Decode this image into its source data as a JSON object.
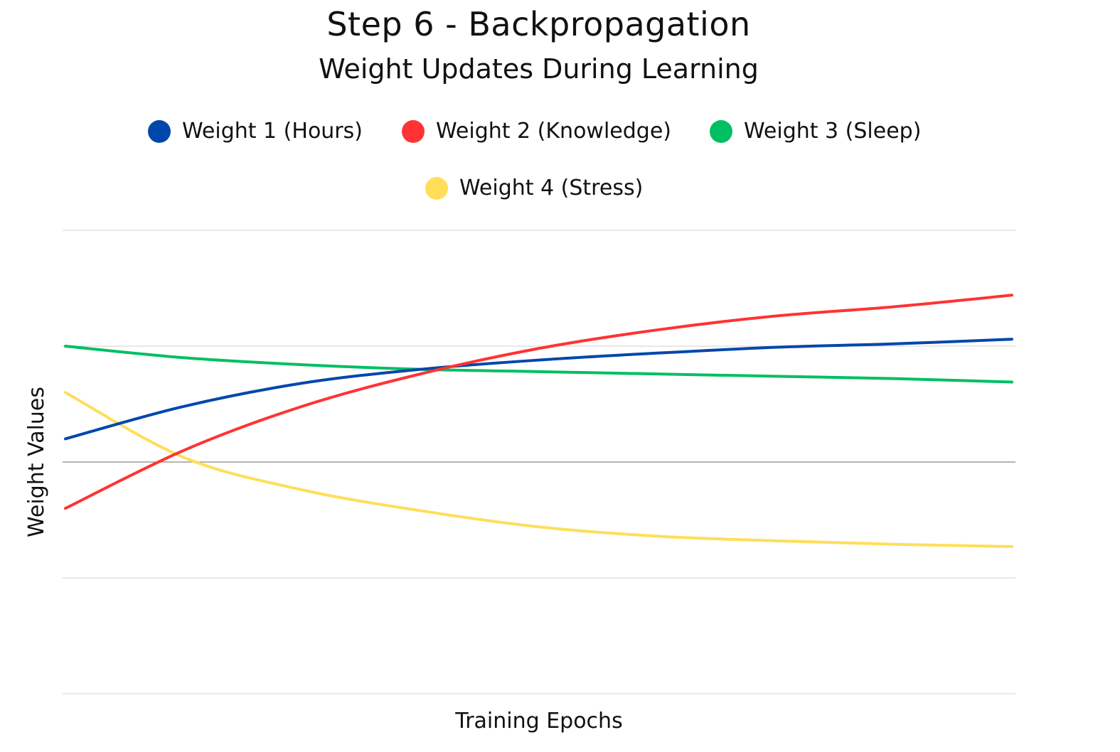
{
  "title": "Step 6 - Backpropagation",
  "subtitle": "Weight Updates During Learning",
  "colors": {
    "weight1": "#0047ab",
    "weight2": "#ff3333",
    "weight3": "#00bf63",
    "weight4": "#ffde59",
    "grid": "#d9d9d9",
    "zero_line": "#888888"
  },
  "legend": [
    {
      "label": "Weight 1 (Hours)",
      "color": "#0047ab"
    },
    {
      "label": "Weight 2 (Knowledge)",
      "color": "#ff3333"
    },
    {
      "label": "Weight 3 (Sleep)",
      "color": "#00bf63"
    },
    {
      "label": "Weight 4 (Stress)",
      "color": "#ffde59"
    }
  ],
  "chart_data": {
    "type": "line",
    "title": "Step 6 - Backpropagation",
    "subtitle": "Weight Updates During Learning",
    "xlabel": "Training Epochs",
    "ylabel": "Weight Values",
    "x_ticks_visible": false,
    "y_ticks_visible": false,
    "xlim": [
      0,
      40
    ],
    "ylim": [
      -1,
      1
    ],
    "grid": true,
    "gridlines_y": [
      -1,
      -0.5,
      0,
      0.5,
      1
    ],
    "legend_position": "top-center",
    "x": [
      0,
      5,
      10,
      15,
      20,
      25,
      30,
      35,
      40
    ],
    "series": [
      {
        "name": "Weight 1 (Hours)",
        "color": "#0047ab",
        "values": [
          0.1,
          0.24,
          0.34,
          0.4,
          0.44,
          0.47,
          0.495,
          0.51,
          0.53
        ]
      },
      {
        "name": "Weight 2 (Knowledge)",
        "color": "#ff3333",
        "values": [
          -0.2,
          0.05,
          0.24,
          0.38,
          0.49,
          0.57,
          0.63,
          0.67,
          0.72
        ]
      },
      {
        "name": "Weight 3 (Sleep)",
        "color": "#00bf63",
        "values": [
          0.5,
          0.45,
          0.42,
          0.4,
          0.39,
          0.38,
          0.37,
          0.36,
          0.345
        ]
      },
      {
        "name": "Weight 4 (Stress)",
        "color": "#ffde59",
        "values": [
          0.3,
          0.02,
          -0.12,
          -0.21,
          -0.28,
          -0.32,
          -0.34,
          -0.355,
          -0.365
        ]
      }
    ]
  }
}
